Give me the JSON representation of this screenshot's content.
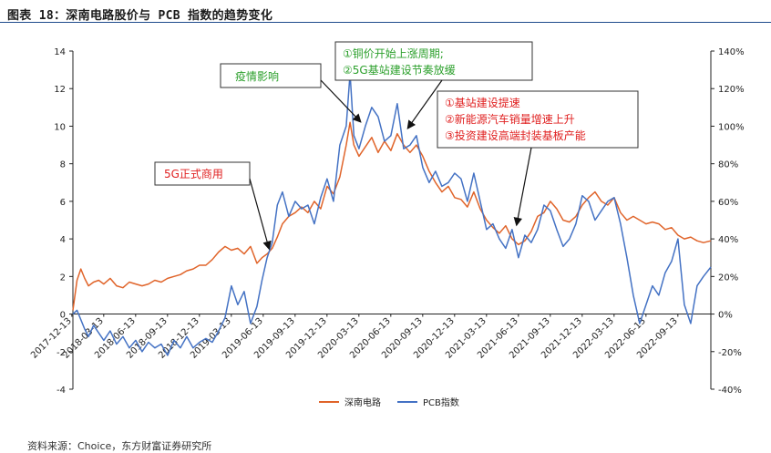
{
  "figure_title": "图表 18：深南电路股价与 PCB 指数的趋势变化",
  "source_note": "资料来源：Choice，东方财富证券研究所",
  "colors": {
    "shennan": "#e0642a",
    "pcb": "#4472c4",
    "ann_red": "#e02020",
    "ann_green": "#2ca02c"
  },
  "chart_data": {
    "type": "line",
    "left_axis": {
      "ylim": [
        -4,
        14
      ],
      "ticks": [
        -4,
        -2,
        0,
        2,
        4,
        6,
        8,
        10,
        12,
        14
      ],
      "tick_labels": [
        "-4",
        "-2",
        "0",
        "2",
        "4",
        "6",
        "8",
        "10",
        "12",
        "14"
      ]
    },
    "right_axis": {
      "ylim": [
        -40,
        140
      ],
      "ticks": [
        -40,
        -20,
        0,
        20,
        40,
        60,
        80,
        100,
        120,
        140
      ],
      "tick_labels": [
        "-40%",
        "-20%",
        "0%",
        "20%",
        "40%",
        "60%",
        "80%",
        "100%",
        "120%",
        "140%"
      ]
    },
    "x_tick_labels": [
      "2017-12-13",
      "2018-03-13",
      "2018-06-13",
      "2018-09-13",
      "2018-12-13",
      "2019-03-13",
      "2019-06-13",
      "2019-09-13",
      "2019-12-13",
      "2020-03-13",
      "2020-06-13",
      "2020-09-13",
      "2020-12-13",
      "2021-03-13",
      "2021-06-13",
      "2021-09-13",
      "2021-12-13",
      "2022-03-13",
      "2022-06-13",
      "2022-09-13"
    ],
    "x_end": 2022.958,
    "legend": [
      "深南电路",
      "PCB指数"
    ],
    "legend_position": "bottom",
    "series": [
      {
        "name": "深南电路",
        "axis": "left",
        "x": [
          2017.958,
          2017.99,
          2018.02,
          2018.05,
          2018.08,
          2018.12,
          2018.16,
          2018.2,
          2018.25,
          2018.3,
          2018.35,
          2018.4,
          2018.45,
          2018.5,
          2018.55,
          2018.6,
          2018.65,
          2018.7,
          2018.75,
          2018.8,
          2018.85,
          2018.9,
          2018.95,
          2019.0,
          2019.05,
          2019.1,
          2019.15,
          2019.2,
          2019.25,
          2019.3,
          2019.35,
          2019.4,
          2019.44,
          2019.48,
          2019.52,
          2019.56,
          2019.6,
          2019.65,
          2019.7,
          2019.75,
          2019.8,
          2019.85,
          2019.9,
          2019.95,
          2020.0,
          2020.05,
          2020.1,
          2020.13,
          2020.16,
          2020.2,
          2020.25,
          2020.3,
          2020.35,
          2020.4,
          2020.45,
          2020.5,
          2020.55,
          2020.6,
          2020.65,
          2020.7,
          2020.75,
          2020.8,
          2020.85,
          2020.9,
          2020.95,
          2021.0,
          2021.05,
          2021.1,
          2021.15,
          2021.2,
          2021.25,
          2021.3,
          2021.35,
          2021.4,
          2021.45,
          2021.5,
          2021.55,
          2021.6,
          2021.65,
          2021.7,
          2021.75,
          2021.8,
          2021.85,
          2021.9,
          2021.95,
          2022.0,
          2022.05,
          2022.1,
          2022.15,
          2022.2,
          2022.25,
          2022.3,
          2022.35,
          2022.4,
          2022.45,
          2022.5,
          2022.55,
          2022.6,
          2022.65,
          2022.7,
          2022.75,
          2022.8,
          2022.85,
          2022.9,
          2022.958
        ],
        "y": [
          0.2,
          1.8,
          2.4,
          1.9,
          1.5,
          1.7,
          1.8,
          1.6,
          1.9,
          1.5,
          1.4,
          1.7,
          1.6,
          1.5,
          1.6,
          1.8,
          1.7,
          1.9,
          2.0,
          2.1,
          2.3,
          2.4,
          2.6,
          2.6,
          2.9,
          3.3,
          3.6,
          3.4,
          3.5,
          3.2,
          3.6,
          2.7,
          3.0,
          3.2,
          3.5,
          4.1,
          4.8,
          5.2,
          5.4,
          5.7,
          5.4,
          6.0,
          5.6,
          6.8,
          6.4,
          7.3,
          9.0,
          10.2,
          9.0,
          8.4,
          8.9,
          9.4,
          8.6,
          9.2,
          8.7,
          9.6,
          9.0,
          8.6,
          9.0,
          8.4,
          7.6,
          7.0,
          6.5,
          6.8,
          6.2,
          6.1,
          5.7,
          6.5,
          5.6,
          5.0,
          4.6,
          4.3,
          4.7,
          4.0,
          3.7,
          3.9,
          4.4,
          5.2,
          5.4,
          6.0,
          5.6,
          5.0,
          4.9,
          5.2,
          5.8,
          6.2,
          6.5,
          6.0,
          5.8,
          6.2,
          5.4,
          5.0,
          5.2,
          5.0,
          4.8,
          4.9,
          4.8,
          4.5,
          4.6,
          4.2,
          4.0,
          4.1,
          3.9,
          3.8,
          3.9
        ]
      },
      {
        "name": "PCB指数",
        "axis": "right",
        "x": [
          2017.958,
          2017.99,
          2018.02,
          2018.05,
          2018.08,
          2018.12,
          2018.16,
          2018.2,
          2018.25,
          2018.3,
          2018.35,
          2018.4,
          2018.45,
          2018.5,
          2018.55,
          2018.6,
          2018.65,
          2018.7,
          2018.75,
          2018.8,
          2018.85,
          2018.9,
          2018.95,
          2019.0,
          2019.05,
          2019.1,
          2019.15,
          2019.2,
          2019.25,
          2019.3,
          2019.35,
          2019.4,
          2019.44,
          2019.48,
          2019.52,
          2019.56,
          2019.6,
          2019.65,
          2019.7,
          2019.75,
          2019.8,
          2019.85,
          2019.9,
          2019.95,
          2020.0,
          2020.05,
          2020.1,
          2020.13,
          2020.16,
          2020.2,
          2020.25,
          2020.3,
          2020.35,
          2020.4,
          2020.45,
          2020.5,
          2020.55,
          2020.6,
          2020.65,
          2020.7,
          2020.75,
          2020.8,
          2020.85,
          2020.9,
          2020.95,
          2021.0,
          2021.05,
          2021.1,
          2021.15,
          2021.2,
          2021.25,
          2021.3,
          2021.35,
          2021.4,
          2021.45,
          2021.5,
          2021.55,
          2021.6,
          2021.65,
          2021.7,
          2021.75,
          2021.8,
          2021.85,
          2021.9,
          2021.95,
          2022.0,
          2022.05,
          2022.1,
          2022.15,
          2022.2,
          2022.25,
          2022.3,
          2022.35,
          2022.4,
          2022.45,
          2022.5,
          2022.55,
          2022.6,
          2022.65,
          2022.7,
          2022.75,
          2022.8,
          2022.85,
          2022.9,
          2022.958
        ],
        "y": [
          0,
          2,
          -3,
          -8,
          -12,
          -6,
          -10,
          -14,
          -9,
          -16,
          -12,
          -18,
          -14,
          -20,
          -15,
          -18,
          -16,
          -22,
          -14,
          -18,
          -12,
          -18,
          -15,
          -13,
          -15,
          -9,
          -2,
          15,
          5,
          12,
          -5,
          4,
          18,
          30,
          38,
          58,
          65,
          52,
          60,
          56,
          58,
          48,
          62,
          72,
          60,
          90,
          100,
          128,
          95,
          88,
          100,
          110,
          105,
          92,
          95,
          112,
          88,
          90,
          95,
          78,
          70,
          76,
          68,
          70,
          75,
          72,
          60,
          75,
          60,
          45,
          48,
          40,
          35,
          45,
          30,
          42,
          38,
          45,
          58,
          55,
          45,
          36,
          40,
          48,
          63,
          60,
          50,
          55,
          60,
          62,
          48,
          30,
          10,
          -5,
          5,
          15,
          10,
          22,
          28,
          40,
          5,
          -5,
          15,
          20,
          25
        ]
      }
    ],
    "annotations": [
      {
        "text": "疫情影响",
        "color": "green"
      },
      {
        "lines": [
          "①铜价开始上涨周期;",
          "②5G基站建设节奏放缓"
        ],
        "color": "green"
      },
      {
        "text": "5G正式商用",
        "color": "red"
      },
      {
        "lines": [
          "①基站建设提速",
          "②新能源汽车销量增速上升",
          "③投资建设高端封装基板产能"
        ],
        "color": "red"
      }
    ]
  }
}
